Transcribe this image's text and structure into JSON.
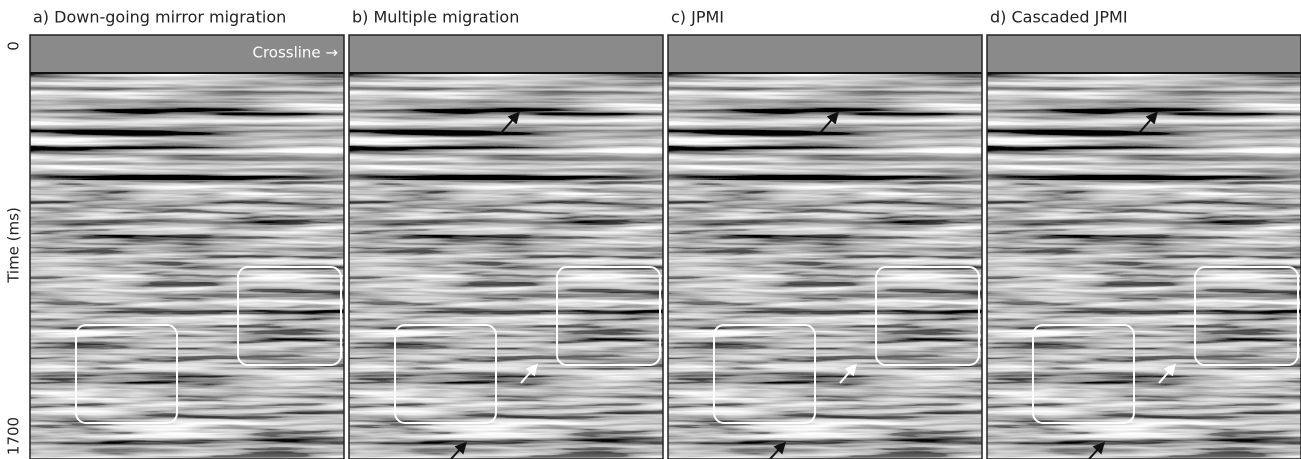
{
  "panels": [
    {
      "title": "a) Down-going mirror migration"
    },
    {
      "title": "b) Multiple migration"
    },
    {
      "title": "c) JPMI"
    },
    {
      "title": "d) Cascaded JPMI"
    }
  ],
  "crossline_label": "Crossline →",
  "y_axis": {
    "label": "Time (ms)",
    "top": "0",
    "bottom": "1700"
  }
}
